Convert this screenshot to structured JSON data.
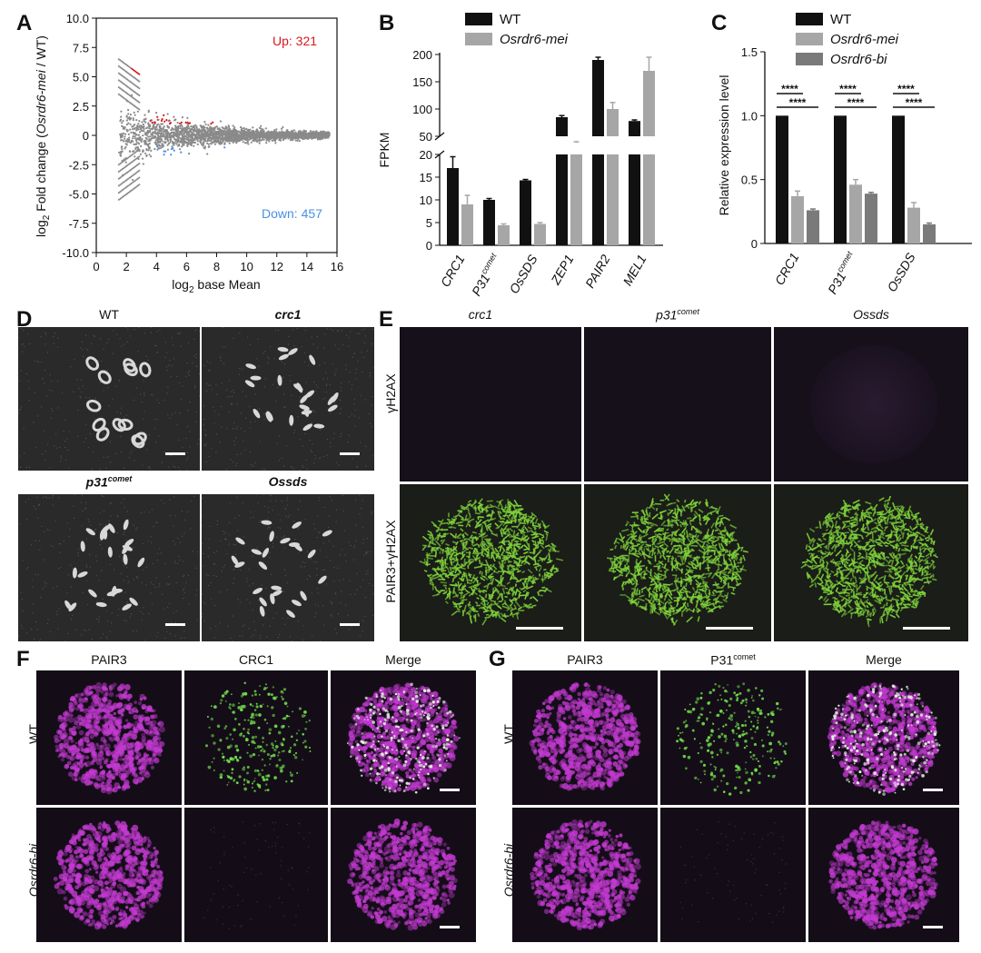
{
  "panels": {
    "A": {
      "letter": "A",
      "chart_data": {
        "type": "scatter",
        "xlabel_prefix": "log",
        "xlabel_sub": "2",
        "xlabel_rest": " base Mean",
        "ylabel_prefix": "log",
        "ylabel_sub": "2",
        "ylabel_rest_1": " Fold change (",
        "ylabel_italic": "Osrdr6-mei",
        "ylabel_rest_2": " / WT)",
        "xlim": [
          0,
          16
        ],
        "ylim": [
          -10,
          10
        ],
        "xticks": [
          "0",
          "2",
          "4",
          "6",
          "8",
          "10",
          "12",
          "14",
          "16"
        ],
        "yticks": [
          "10.0",
          "7.5",
          "5.0",
          "2.5",
          "0",
          "-2.5",
          "-5.0",
          "-7.5",
          "-10.0"
        ],
        "annotations": {
          "up": "Up: 321",
          "down": "Down: 457"
        },
        "colors": {
          "up": "#d7191c",
          "down": "#4a90e2",
          "ns": "#8a8a8a"
        }
      }
    },
    "B": {
      "letter": "B",
      "chart_data": {
        "type": "bar",
        "ylabel": "FPKM",
        "categories": [
          "CRC1",
          "P31",
          "OsSDS",
          "ZEP1",
          "PAIR2",
          "MEL1"
        ],
        "category_sup": [
          "",
          "comet",
          "",
          "",
          "",
          ""
        ],
        "series": [
          {
            "name": "WT",
            "values": [
              17,
              10,
              14.3,
              85,
              190,
              78
            ],
            "errors": [
              2.5,
              0.3,
              0.2,
              3,
              5,
              2
            ],
            "color": "#111111"
          },
          {
            "name": "Osrdr6-mei",
            "values": [
              9,
              4.4,
              4.7,
              38,
              100,
              170
            ],
            "errors": [
              2,
              0.3,
              0.3,
              2,
              12,
              25
            ],
            "color": "#a6a6a6"
          }
        ],
        "axis_break": [
          20,
          50
        ],
        "lower_ticks": [
          "0",
          "5",
          "10",
          "15",
          "20"
        ],
        "upper_ticks": [
          "50",
          "100",
          "150",
          "200"
        ]
      }
    },
    "C": {
      "letter": "C",
      "chart_data": {
        "type": "bar",
        "ylabel": "Relative expression level",
        "categories": [
          "CRC1",
          "P31",
          "OsSDS"
        ],
        "category_sup": [
          "",
          "comet",
          ""
        ],
        "ylim": [
          0,
          1.5
        ],
        "yticks": [
          "0",
          "0.5",
          "1.0",
          "1.5"
        ],
        "series": [
          {
            "name": "WT",
            "values": [
              1.0,
              1.0,
              1.0
            ],
            "errors": [
              0,
              0,
              0
            ],
            "color": "#111111"
          },
          {
            "name": "Osrdr6-mei",
            "values": [
              0.37,
              0.46,
              0.28
            ],
            "errors": [
              0.04,
              0.04,
              0.04
            ],
            "color": "#a6a6a6"
          },
          {
            "name": "Osrdr6-bi",
            "values": [
              0.26,
              0.39,
              0.15
            ],
            "errors": [
              0.01,
              0.01,
              0.01
            ],
            "color": "#7a7a7a"
          }
        ],
        "significance": "****"
      }
    },
    "D": {
      "letter": "D",
      "images": [
        {
          "label": "WT",
          "italic": false,
          "sup": ""
        },
        {
          "label": "crc1",
          "italic": true,
          "sup": ""
        },
        {
          "label": "p31",
          "italic": true,
          "sup": "comet"
        },
        {
          "label": "Ossds",
          "italic": true,
          "sup": ""
        }
      ]
    },
    "E": {
      "letter": "E",
      "columns": [
        {
          "label": "crc1",
          "sup": ""
        },
        {
          "label": "p31",
          "sup": "comet"
        },
        {
          "label": "Ossds",
          "sup": ""
        }
      ],
      "rows": [
        "γH2AX",
        "PAIR3+γH2AX"
      ]
    },
    "F": {
      "letter": "F",
      "columns": [
        {
          "label": "PAIR3",
          "sup": ""
        },
        {
          "label": "CRC1",
          "sup": ""
        },
        {
          "label": "Merge",
          "sup": ""
        }
      ],
      "rows": [
        "WT",
        "Osrdr6-bi"
      ]
    },
    "G": {
      "letter": "G",
      "columns": [
        {
          "label": "PAIR3",
          "sup": ""
        },
        {
          "label": "P31",
          "sup": "comet"
        },
        {
          "label": "Merge",
          "sup": ""
        }
      ],
      "rows": [
        "WT",
        "Osrdr6-bi"
      ]
    }
  }
}
